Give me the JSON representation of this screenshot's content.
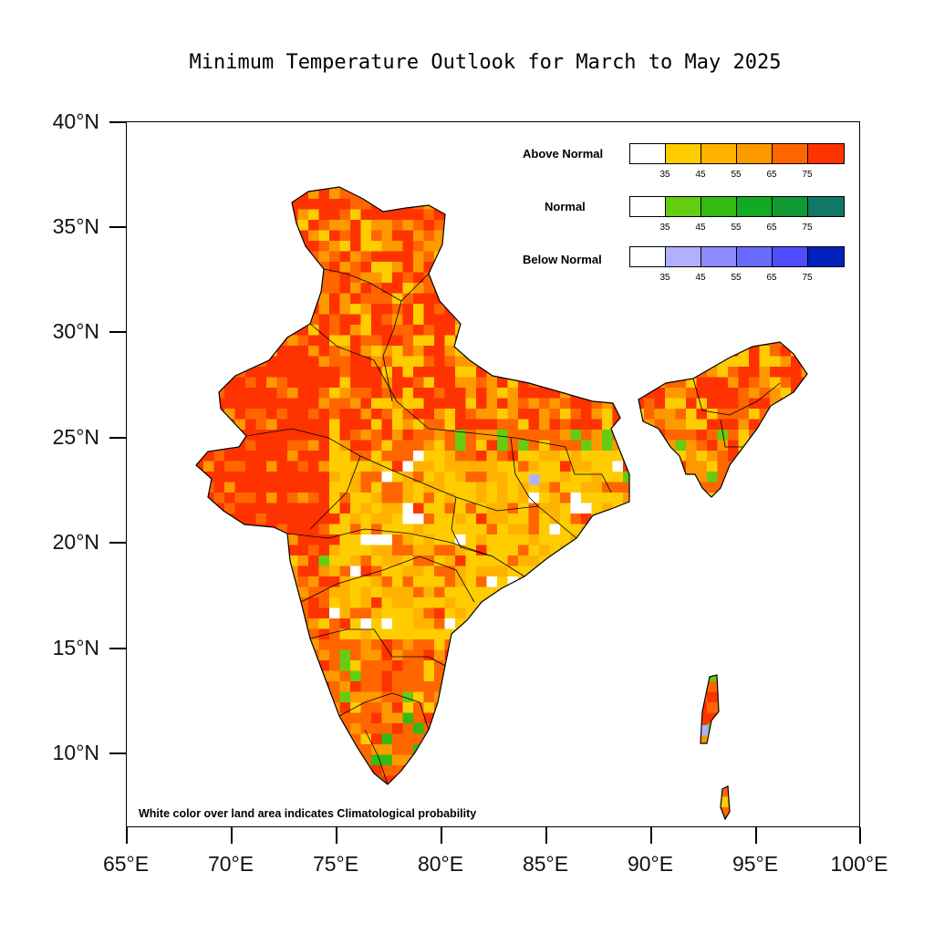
{
  "title": "Minimum Temperature Outlook for March to May 2025",
  "axes": {
    "y_labels": [
      "40°N",
      "35°N",
      "30°N",
      "25°N",
      "20°N",
      "15°N",
      "10°N"
    ],
    "x_labels": [
      "65°E",
      "70°E",
      "75°E",
      "80°E",
      "85°E",
      "90°E",
      "95°E",
      "100°E"
    ]
  },
  "legend": {
    "above": {
      "title": "Above Normal",
      "colors": [
        "#ffffff",
        "#ffcc00",
        "#ffb300",
        "#ff9900",
        "#ff6600",
        "#ff3300"
      ],
      "ticks": [
        "35",
        "45",
        "55",
        "65",
        "75"
      ]
    },
    "normal": {
      "title": "Normal",
      "colors": [
        "#ffffff",
        "#66cc11",
        "#33bb11",
        "#11aa22",
        "#119933",
        "#117766"
      ],
      "ticks": [
        "35",
        "45",
        "55",
        "65",
        "75"
      ]
    },
    "below": {
      "title": "Below Normal",
      "colors": [
        "#ffffff",
        "#b0b0ff",
        "#8c8cff",
        "#6a6aff",
        "#4d4dff",
        "#0022bb"
      ],
      "ticks": [
        "35",
        "45",
        "55",
        "65",
        "75"
      ]
    }
  },
  "note": "White color over land area indicates Climatological probability"
}
